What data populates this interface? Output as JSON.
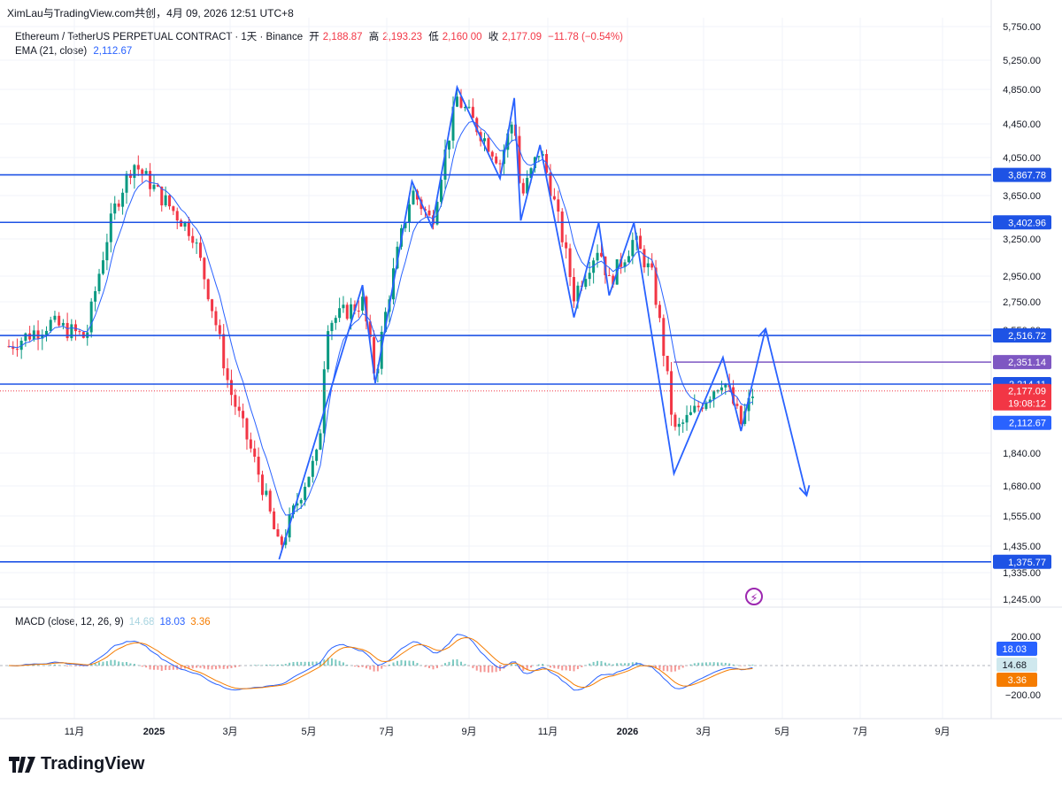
{
  "header": {
    "text": "XimLau与TradingView.com共创，4月 09, 2026 12:51 UTC+8"
  },
  "legend": {
    "symbol": "Ethereum / TetherUS PERPETUAL CONTRACT · 1天 · Binance",
    "open_label": "开",
    "open": "2,188.87",
    "high_label": "高",
    "high": "2,193.23",
    "low_label": "低",
    "low": "2,160.00",
    "close_label": "收",
    "close": "2,177.09",
    "change": "−11.78 (−0.54%)",
    "ema_label": "EMA (21, close)",
    "ema_value": "2,112.67"
  },
  "macd_legend": {
    "label": "MACD (close, 12, 26, 9)",
    "v1": "14.68",
    "v2": "18.03",
    "v3": "3.36"
  },
  "footer": {
    "brand": "TradingView"
  },
  "colors": {
    "up": "#089981",
    "down": "#f23645",
    "ema": "#2962ff",
    "hline": "#1e53e5",
    "purple": "#7e57c2",
    "macd_line": "#2962ff",
    "signal_line": "#f57c00",
    "drawing": "#2962ff"
  },
  "chart_data": {
    "type": "candlestick",
    "price_axis": {
      "ticks": [
        "5,750.00",
        "5,250.00",
        "4,850.00",
        "4,450.00",
        "4,050.00",
        "3,650.00",
        "3,250.00",
        "2,950.00",
        "2,750.00",
        "2,550.00",
        "1,840.00",
        "1,680.00",
        "1,555.00",
        "1,435.00",
        "1,335.00",
        "1,245.00"
      ]
    },
    "time_axis": {
      "labels": [
        "11月",
        "2025",
        "3月",
        "5月",
        "7月",
        "9月",
        "11月",
        "2026",
        "3月",
        "5月",
        "7月",
        "9月"
      ]
    },
    "horizontal_lines": [
      {
        "price": 3867.78,
        "label": "3,867.78",
        "color": "#1e53e5"
      },
      {
        "price": 3402.96,
        "label": "3,402.96",
        "color": "#1e53e5"
      },
      {
        "price": 2516.72,
        "label": "2,516.72",
        "color": "#1e53e5"
      },
      {
        "price": 2214.11,
        "label": "2,214.11",
        "color": "#1e53e5"
      },
      {
        "price": 1375.77,
        "label": "1,375.77",
        "color": "#1e53e5"
      }
    ],
    "ray_line": {
      "price": 2351.14,
      "label": "2,351.14",
      "color": "#7e57c2"
    },
    "last_price": {
      "price": 2177.09,
      "label": "2,177.09",
      "countdown": "19:08:12",
      "color": "#f23645"
    },
    "ema_last": {
      "price": 2112.67,
      "label": "2,112.67",
      "color": "#2962ff"
    },
    "macd_axis": {
      "ticks": [
        "200.00",
        "−200.00"
      ]
    },
    "macd_labels": [
      {
        "value": "18.03",
        "color": "#2962ff"
      },
      {
        "value": "14.68",
        "color": "#cfe8ee"
      },
      {
        "value": "3.36",
        "color": "#f57c00"
      }
    ],
    "drawing_path_prices": [
      {
        "x_month": "2025-04-08",
        "price": 1385
      },
      {
        "x_month": "2025-06-12",
        "price": 2880
      },
      {
        "x_month": "2025-06-22",
        "price": 2220
      },
      {
        "x_month": "2025-07-20",
        "price": 3800
      },
      {
        "x_month": "2025-08-04",
        "price": 3360
      },
      {
        "x_month": "2025-08-23",
        "price": 4880
      },
      {
        "x_month": "2025-09-25",
        "price": 3830
      },
      {
        "x_month": "2025-10-06",
        "price": 4750
      },
      {
        "x_month": "2025-10-11",
        "price": 3420
      },
      {
        "x_month": "2025-10-26",
        "price": 4200
      },
      {
        "x_month": "2025-11-21",
        "price": 2640
      },
      {
        "x_month": "2025-12-10",
        "price": 3400
      },
      {
        "x_month": "2025-12-18",
        "price": 2800
      },
      {
        "x_month": "2026-01-06",
        "price": 3400
      },
      {
        "x_month": "2026-02-06",
        "price": 1740
      },
      {
        "x_month": "2026-03-16",
        "price": 2380
      },
      {
        "x_month": "2026-03-30",
        "price": 1960
      },
      {
        "x_month": "2026-04-18",
        "price": 2560
      },
      {
        "x_month": "2026-05-20",
        "price": 1640
      }
    ]
  }
}
